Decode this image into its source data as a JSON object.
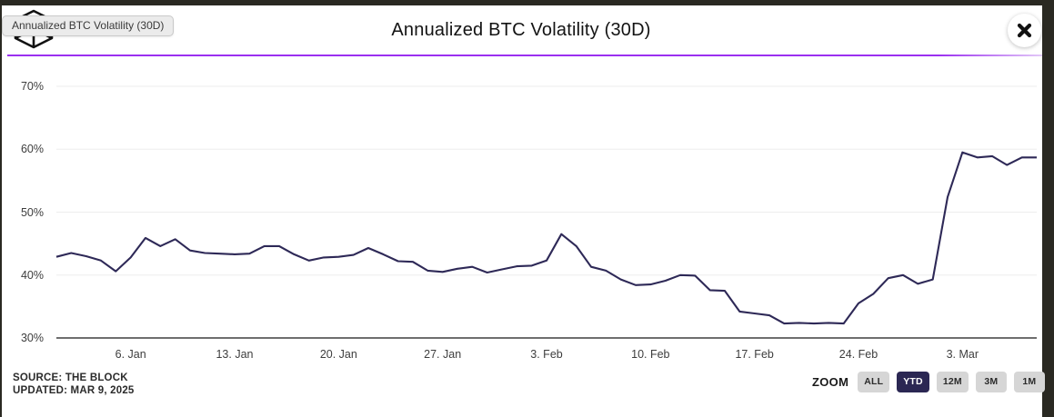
{
  "header": {
    "title": "Annualized BTC Volatility (30D)"
  },
  "tooltip": {
    "text": "Annualized BTC Volatility (30D)"
  },
  "footer": {
    "source": "SOURCE: THE BLOCK",
    "updated": "UPDATED: MAR 9, 2025"
  },
  "zoom_controls": {
    "label": "ZOOM",
    "options": [
      {
        "label": "ALL",
        "selected": false
      },
      {
        "label": "YTD",
        "selected": true
      },
      {
        "label": "12M",
        "selected": false
      },
      {
        "label": "3M",
        "selected": false
      },
      {
        "label": "1M",
        "selected": false
      }
    ]
  },
  "colors": {
    "accent_purple": "#9b30f0",
    "line": "#2e2957",
    "selected_button": "#2b2753",
    "button_gray": "#d6d6d6",
    "grid": "#ededed",
    "axis": "#3f3f3f",
    "frame_dark": "#2a2922"
  },
  "chart_data": {
    "type": "line",
    "title": "Annualized BTC Volatility (30D)",
    "series_name": "BTC 30-day annualized volatility",
    "units": "%",
    "frequency": "daily",
    "x_start": "Jan 1, 2025",
    "x_end": "Mar 8, 2025",
    "ylim": [
      30,
      70
    ],
    "grid": "horizontal",
    "legend": "none",
    "y_ticks": [
      70,
      60,
      50,
      40,
      30
    ],
    "y_tick_suffix": "%",
    "x_ticks": [
      {
        "label": "6. Jan",
        "day": 5
      },
      {
        "label": "13. Jan",
        "day": 12
      },
      {
        "label": "20. Jan",
        "day": 19
      },
      {
        "label": "27. Jan",
        "day": 26
      },
      {
        "label": "3. Feb",
        "day": 33
      },
      {
        "label": "10. Feb",
        "day": 40
      },
      {
        "label": "17. Feb",
        "day": 47
      },
      {
        "label": "24. Feb",
        "day": 54
      },
      {
        "label": "3. Mar",
        "day": 61
      }
    ],
    "values": [
      42.9,
      43.5,
      43.0,
      42.3,
      40.6,
      42.8,
      45.9,
      44.6,
      45.7,
      43.9,
      43.5,
      43.4,
      43.3,
      43.4,
      44.6,
      44.6,
      43.3,
      42.3,
      42.8,
      42.9,
      43.2,
      44.3,
      43.3,
      42.2,
      42.1,
      40.7,
      40.5,
      41.0,
      41.3,
      40.4,
      40.9,
      41.4,
      41.5,
      42.3,
      46.5,
      44.6,
      41.3,
      40.7,
      39.3,
      38.4,
      38.5,
      39.1,
      40.0,
      39.9,
      37.6,
      37.5,
      34.2,
      33.9,
      33.6,
      32.3,
      32.4,
      32.3,
      32.4,
      32.3,
      35.5,
      37.0,
      39.5,
      40.0,
      38.6,
      39.3,
      52.4,
      59.5,
      58.7,
      58.9,
      57.5,
      58.7,
      58.7
    ]
  }
}
